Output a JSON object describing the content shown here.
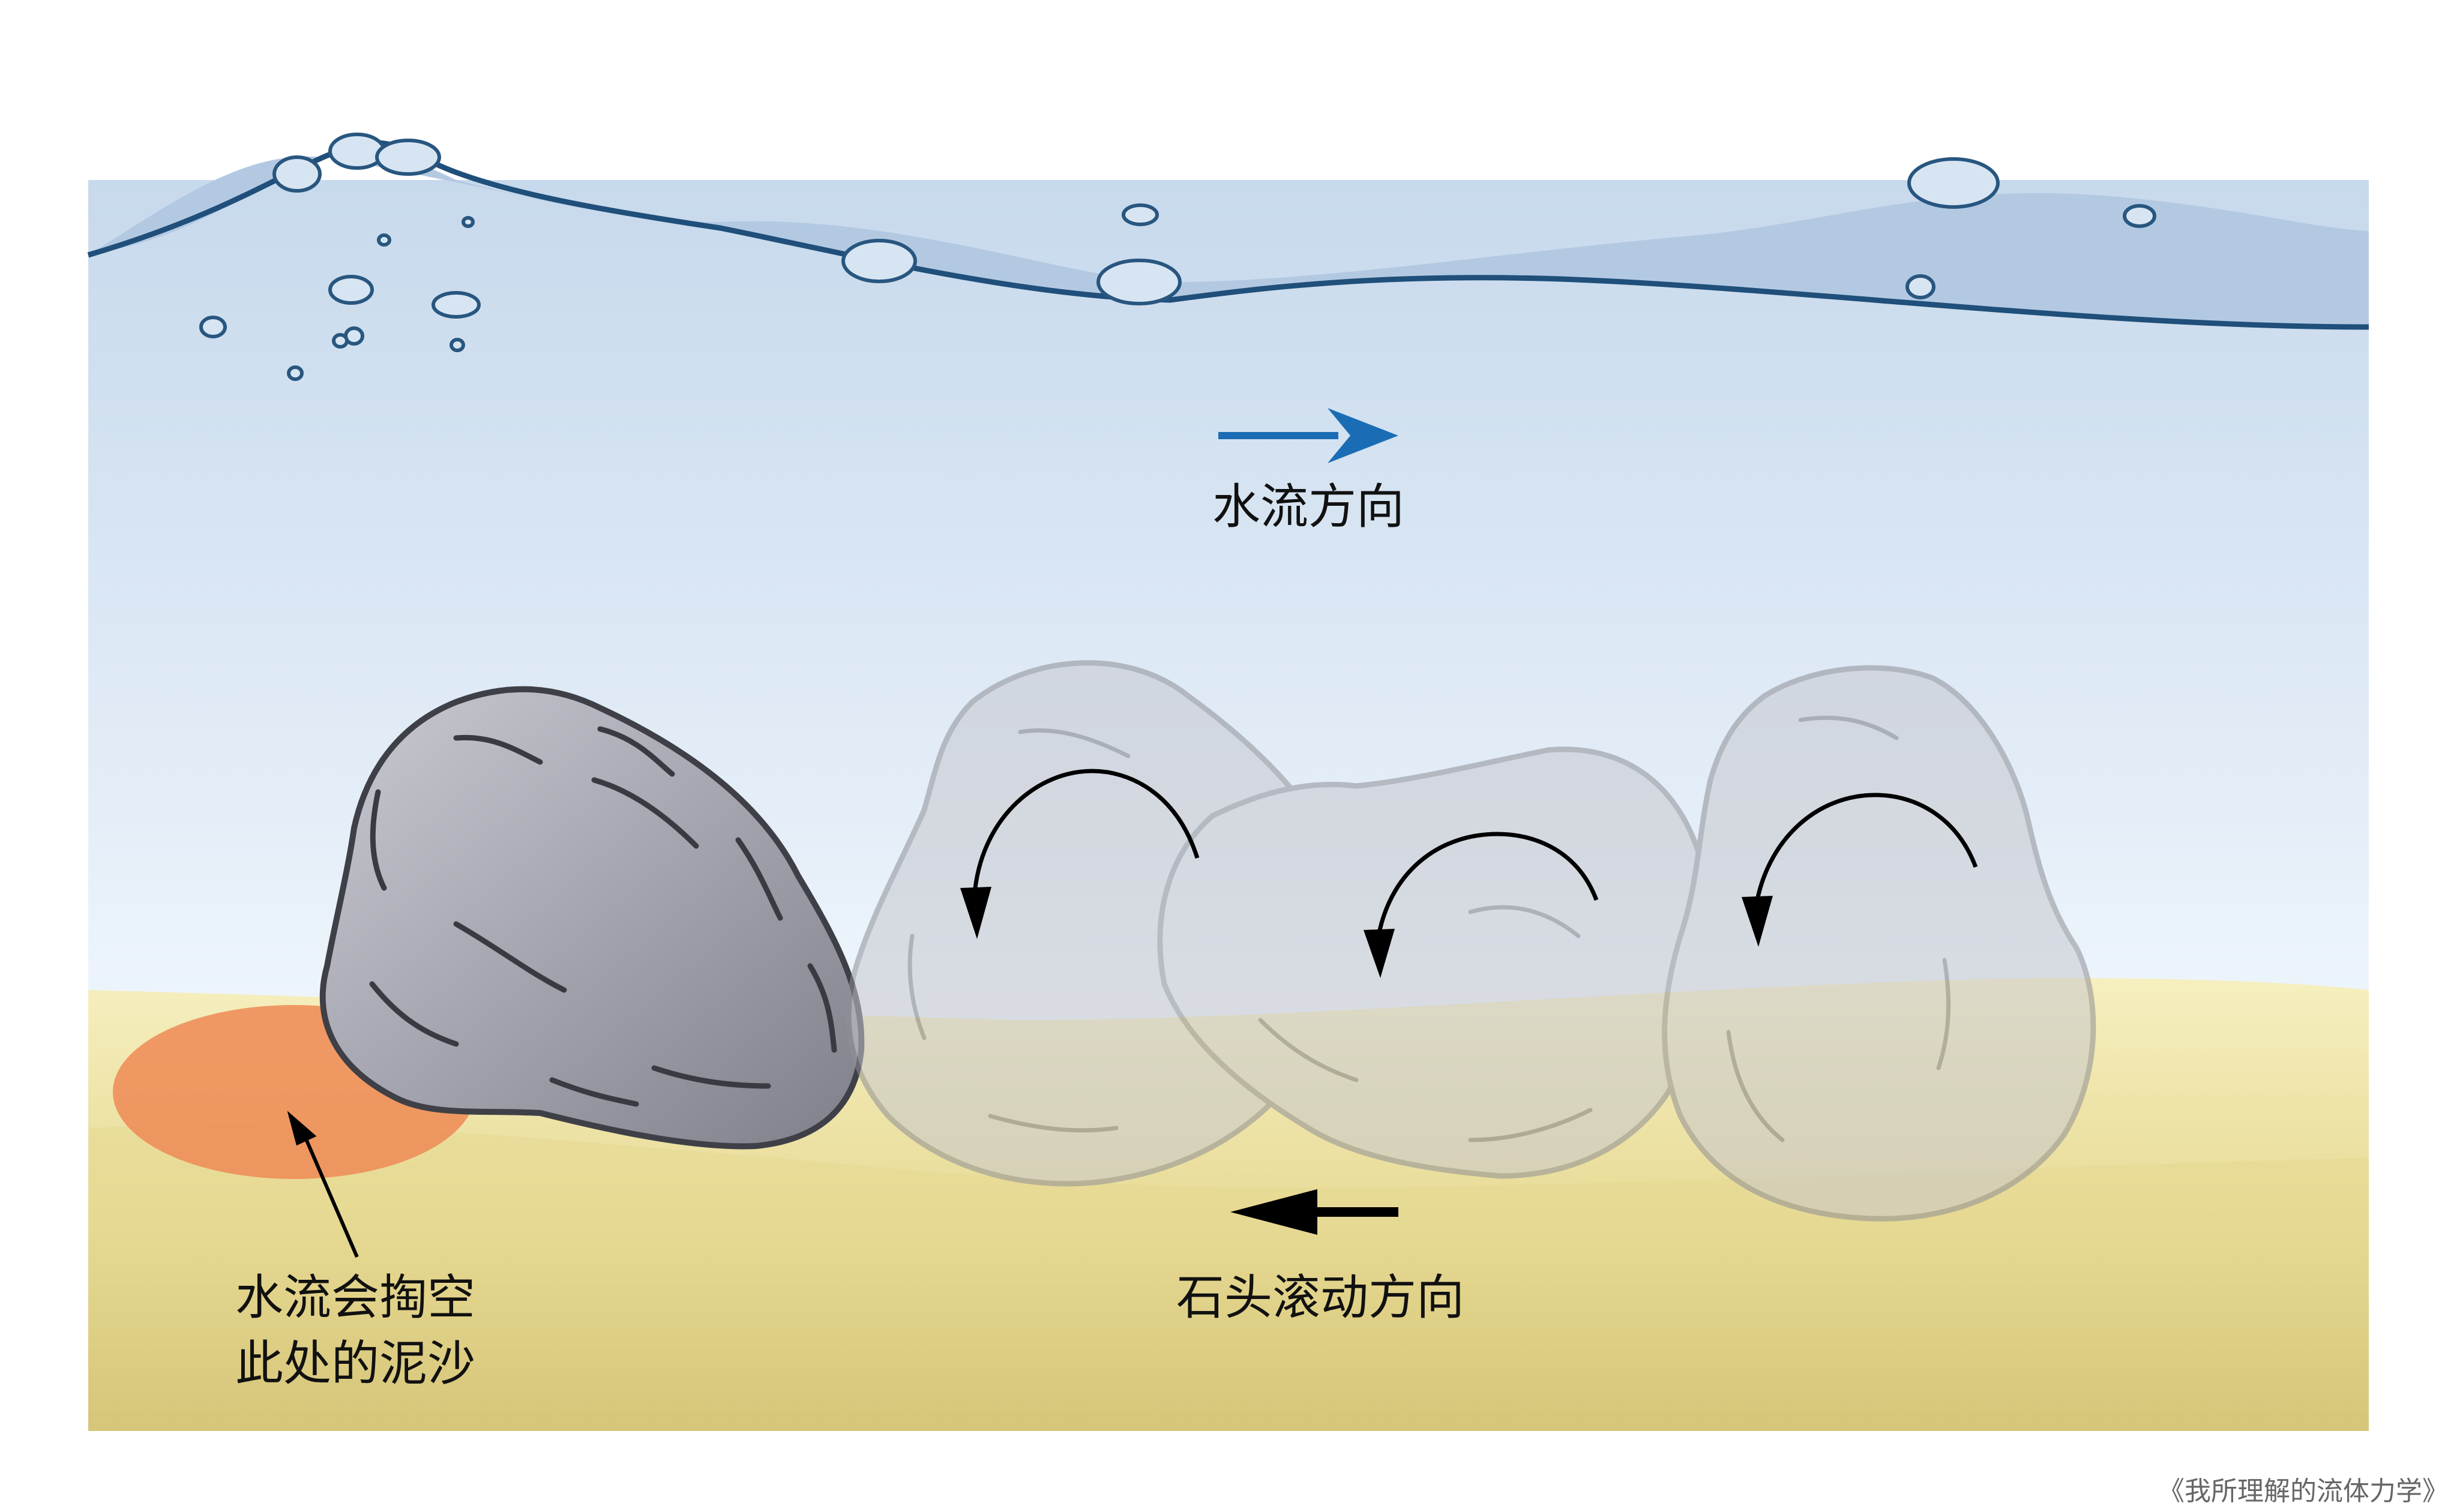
{
  "labels": {
    "water_flow": "水流方向",
    "stone_roll": "石头滚动方向",
    "scour_line1": "水流会掏空",
    "scour_line2": "此处的泥沙"
  },
  "credit": "《我所理解的流体力学》",
  "colors": {
    "water_top": "#b6cce4",
    "water_bottom": "#e9f2fb",
    "sand_top": "#f5eebb",
    "sand_bottom": "#c9b765",
    "flow_arrow": "#1a6db5",
    "stone": "#9a9ba4",
    "scour_zone": "#ee8a55"
  },
  "icons": [
    "water-flow-arrow-icon",
    "stone-roll-arrow-icon",
    "rotation-arrow-icon",
    "pointer-arrow-icon"
  ]
}
